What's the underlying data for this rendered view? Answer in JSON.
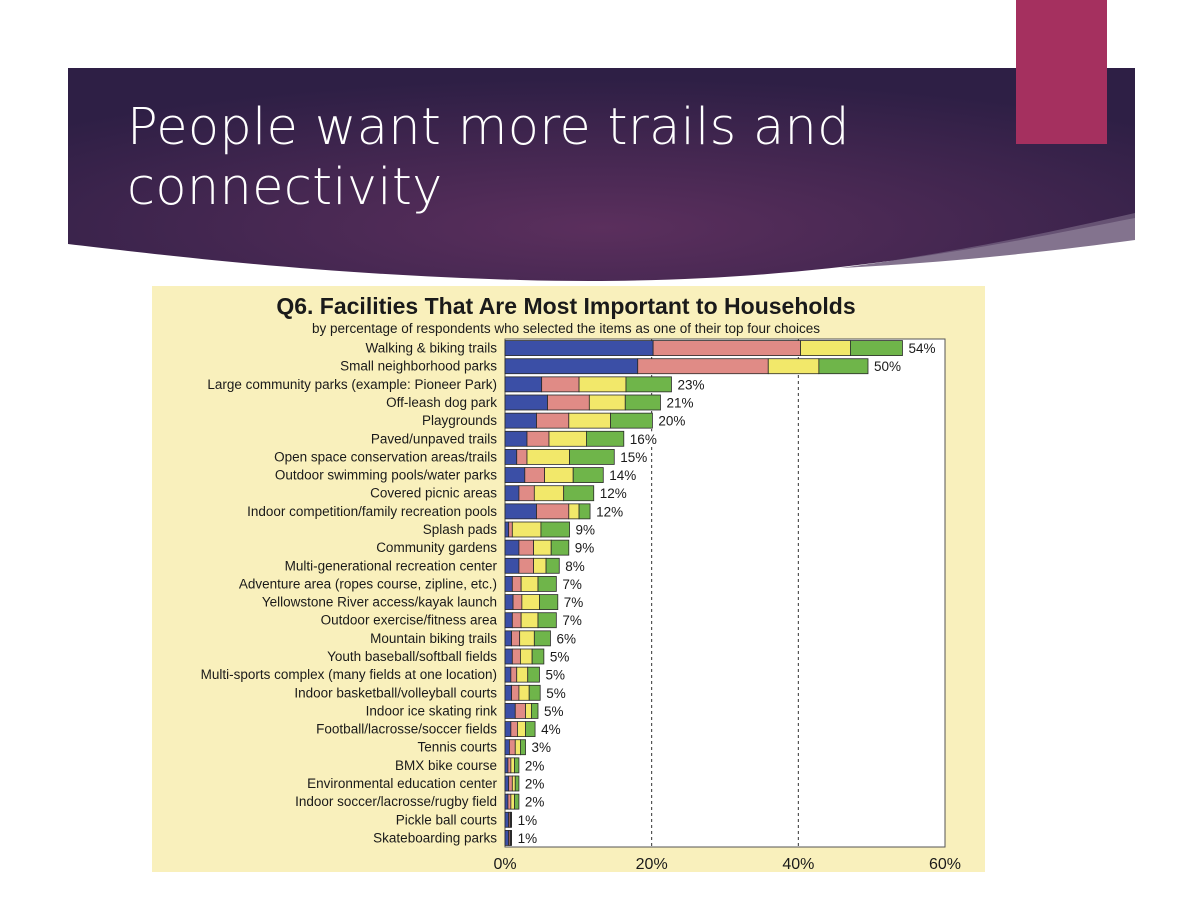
{
  "slide": {
    "title_line1": "People want more trails and",
    "title_line2": "connectivity",
    "colors": {
      "banner_dark": "#2e1f45",
      "banner_mid": "#5b2f5d",
      "accent": "#a5305f",
      "chart_background": "#f9f0bc"
    }
  },
  "chart_data": {
    "type": "bar",
    "orientation": "horizontal",
    "stacked": true,
    "title": "Q6. Facilities That Are Most Important to Households",
    "subtitle": "by percentage of respondents who selected the items as one of their top four choices",
    "xlabel": "",
    "ylabel": "",
    "xlim": [
      0,
      60
    ],
    "x_ticks": [
      "0%",
      "20%",
      "40%",
      "60%"
    ],
    "x_tick_values": [
      0,
      20,
      40,
      60
    ],
    "gridlines": "dashed vertical at 20% and 40%",
    "legend": "none visible",
    "series_colors": [
      "#3b4fa6",
      "#e08b86",
      "#f2e86a",
      "#6fb54a"
    ],
    "categories": [
      "Walking & biking trails",
      "Small neighborhood parks",
      "Large community parks (example: Pioneer Park)",
      "Off-leash dog park",
      "Playgrounds",
      "Paved/unpaved trails",
      "Open space conservation areas/trails",
      "Outdoor swimming pools/water parks",
      "Covered picnic areas",
      "Indoor competition/family recreation pools",
      "Splash pads",
      "Community gardens",
      "Multi-generational recreation center",
      "Adventure area (ropes course, zipline, etc.)",
      "Yellowstone River access/kayak launch",
      "Outdoor exercise/fitness area",
      "Mountain biking trails",
      "Youth baseball/softball fields",
      "Multi-sports complex (many fields at one location)",
      "Indoor basketball/volleyball courts",
      "Indoor ice skating rink",
      "Football/lacrosse/soccer fields",
      "Tennis courts",
      "BMX bike course",
      "Environmental education center",
      "Indoor soccer/lacrosse/rugby field",
      "Pickle ball courts",
      "Skateboarding parks"
    ],
    "totals": [
      54,
      50,
      23,
      21,
      20,
      16,
      15,
      14,
      12,
      12,
      9,
      9,
      8,
      7,
      7,
      7,
      6,
      5,
      5,
      5,
      5,
      4,
      3,
      2,
      2,
      2,
      1,
      1
    ],
    "value_labels": [
      "54%",
      "50%",
      "23%",
      "21%",
      "20%",
      "16%",
      "15%",
      "14%",
      "12%",
      "12%",
      "9%",
      "9%",
      "8%",
      "7%",
      "7%",
      "7%",
      "6%",
      "5%",
      "5%",
      "5%",
      "5%",
      "4%",
      "3%",
      "2%",
      "2%",
      "2%",
      "1%",
      "1%"
    ],
    "segments": [
      [
        20.2,
        20.1,
        6.8,
        7.1
      ],
      [
        18.1,
        17.8,
        6.9,
        6.7
      ],
      [
        5.0,
        5.1,
        6.4,
        6.2
      ],
      [
        5.8,
        5.7,
        4.9,
        4.8
      ],
      [
        4.3,
        4.4,
        5.7,
        5.7
      ],
      [
        3.0,
        3.0,
        5.1,
        5.1
      ],
      [
        1.6,
        1.4,
        5.8,
        6.1
      ],
      [
        2.7,
        2.7,
        3.9,
        4.1
      ],
      [
        1.9,
        2.1,
        4.0,
        4.1
      ],
      [
        4.3,
        4.4,
        1.4,
        1.5
      ],
      [
        0.5,
        0.5,
        3.9,
        3.9
      ],
      [
        1.9,
        2.0,
        2.4,
        2.4
      ],
      [
        1.9,
        2.0,
        1.7,
        1.8
      ],
      [
        1.0,
        1.2,
        2.3,
        2.5
      ],
      [
        1.1,
        1.2,
        2.4,
        2.5
      ],
      [
        1.0,
        1.2,
        2.3,
        2.5
      ],
      [
        0.9,
        1.1,
        2.0,
        2.2
      ],
      [
        1.0,
        1.1,
        1.6,
        1.6
      ],
      [
        0.8,
        0.8,
        1.5,
        1.6
      ],
      [
        0.9,
        1.0,
        1.4,
        1.5
      ],
      [
        1.4,
        1.4,
        0.8,
        0.9
      ],
      [
        0.8,
        0.9,
        1.1,
        1.3
      ],
      [
        0.6,
        0.8,
        0.7,
        0.7
      ],
      [
        0.4,
        0.4,
        0.5,
        0.6
      ],
      [
        0.5,
        0.5,
        0.4,
        0.5
      ],
      [
        0.4,
        0.4,
        0.5,
        0.6
      ],
      [
        0.5,
        0.2,
        0.1,
        0.1
      ],
      [
        0.5,
        0.2,
        0.1,
        0.1
      ]
    ]
  }
}
